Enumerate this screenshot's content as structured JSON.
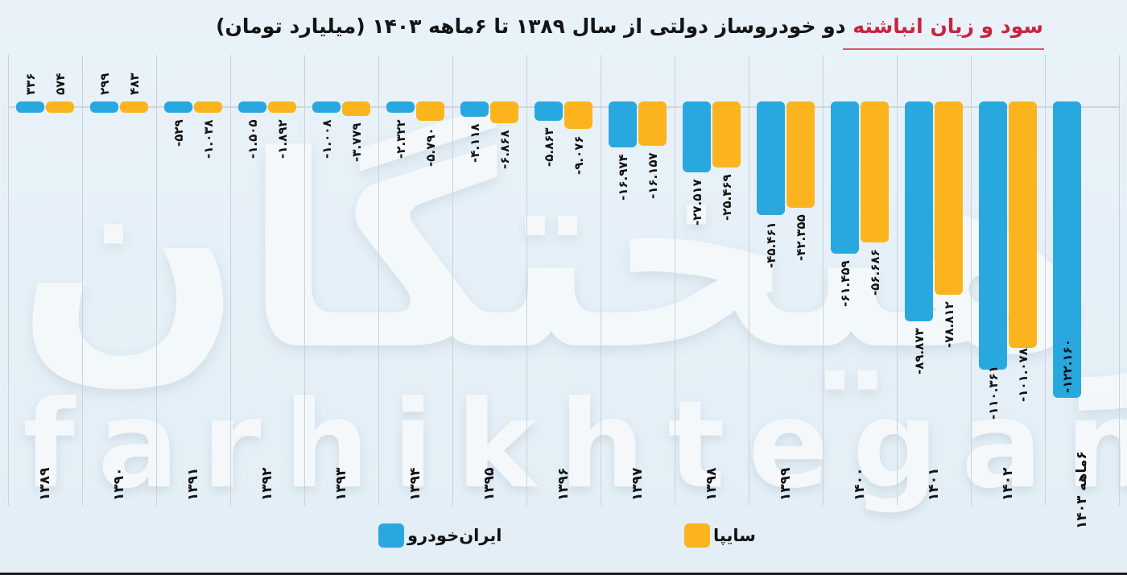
{
  "title": {
    "highlight": "سود و زیان انباشته",
    "rest": " دو خودروساز دولتی از سال ۱۳۸۹ تا ۶ماهه ۱۴۰۳ (میلیارد تومان)"
  },
  "watermark": {
    "persian": "فرهیختگان",
    "latin": "farhikhtegan"
  },
  "legend": [
    {
      "label": "ایران‌خودرو",
      "color": "#29a8e0"
    },
    {
      "label": "سایپا",
      "color": "#fbb41e"
    }
  ],
  "chart_data": {
    "type": "bar",
    "title": "سود و زیان انباشته دو خودروساز دولتی از سال ۱۳۸۹ تا ۶ماهه ۱۴۰۳ (میلیارد تومان)",
    "xlabel": "",
    "ylabel": "میلیارد تومان",
    "unit": "billion toman",
    "grid": {
      "vertical": true,
      "horizontal_baseline": true
    },
    "legend_position": "bottom",
    "categories": [
      "۱۳۸۹",
      "۱۳۹۰",
      "۱۳۹۱",
      "۱۳۹۲",
      "۱۳۹۳",
      "۱۳۹۴",
      "۱۳۹۵",
      "۱۳۹۶",
      "۱۳۹۷",
      "۱۳۹۸",
      "۱۳۹۹",
      "۱۴۰۰",
      "۱۴۰۱",
      "۱۴۰۲",
      "۶ماهه ۱۴۰۳"
    ],
    "series": [
      {
        "name": "ایران‌خودرو",
        "color": "#29a8e0",
        "values": [
          336,
          299,
          -529,
          -1505,
          -1008,
          -2322,
          -4118,
          -5863,
          -16974,
          -27517,
          -45461,
          -61459,
          -89873,
          -110361,
          -122160
        ],
        "labels": [
          "۳۳۶",
          "۲۹۹",
          "۵۲۹-",
          "۱.۵۰۵-",
          "۱.۰۰۸-",
          "۲.۳۲۲-",
          "۴.۱۱۸-",
          "۵.۸۶۳-",
          "۱۶.۹۷۴-",
          "۲۷.۵۱۷-",
          "۴۵.۴۶۱-",
          "۶۱.۴۵۹-",
          "۸۹.۸۷۳-",
          "۱۱۰.۳۶۱-",
          "۱۲۲.۱۶۰-"
        ]
      },
      {
        "name": "سایپا",
        "color": "#fbb41e",
        "values": [
          574,
          483,
          -1038,
          -1892,
          -3779,
          -5790,
          -6868,
          -9076,
          -16157,
          -25469,
          -42355,
          -56686,
          -78812,
          -101078,
          null
        ],
        "labels": [
          "۵۷۴",
          "۴۸۳",
          "۱.۰۳۸-",
          "۱.۸۹۲-",
          "۳.۷۷۹-",
          "۵.۷۹۰-",
          "۶.۸۶۸-",
          "۹.۰۷۶-",
          "۱۶.۱۵۷-",
          "۲۵.۴۶۹-",
          "۴۲.۳۵۵-",
          "۵۶.۶۸۶-",
          "۷۸.۸۱۲-",
          "۱۰۱.۰۷۸-",
          null
        ]
      }
    ],
    "ylim": [
      -125000,
      1000
    ]
  }
}
